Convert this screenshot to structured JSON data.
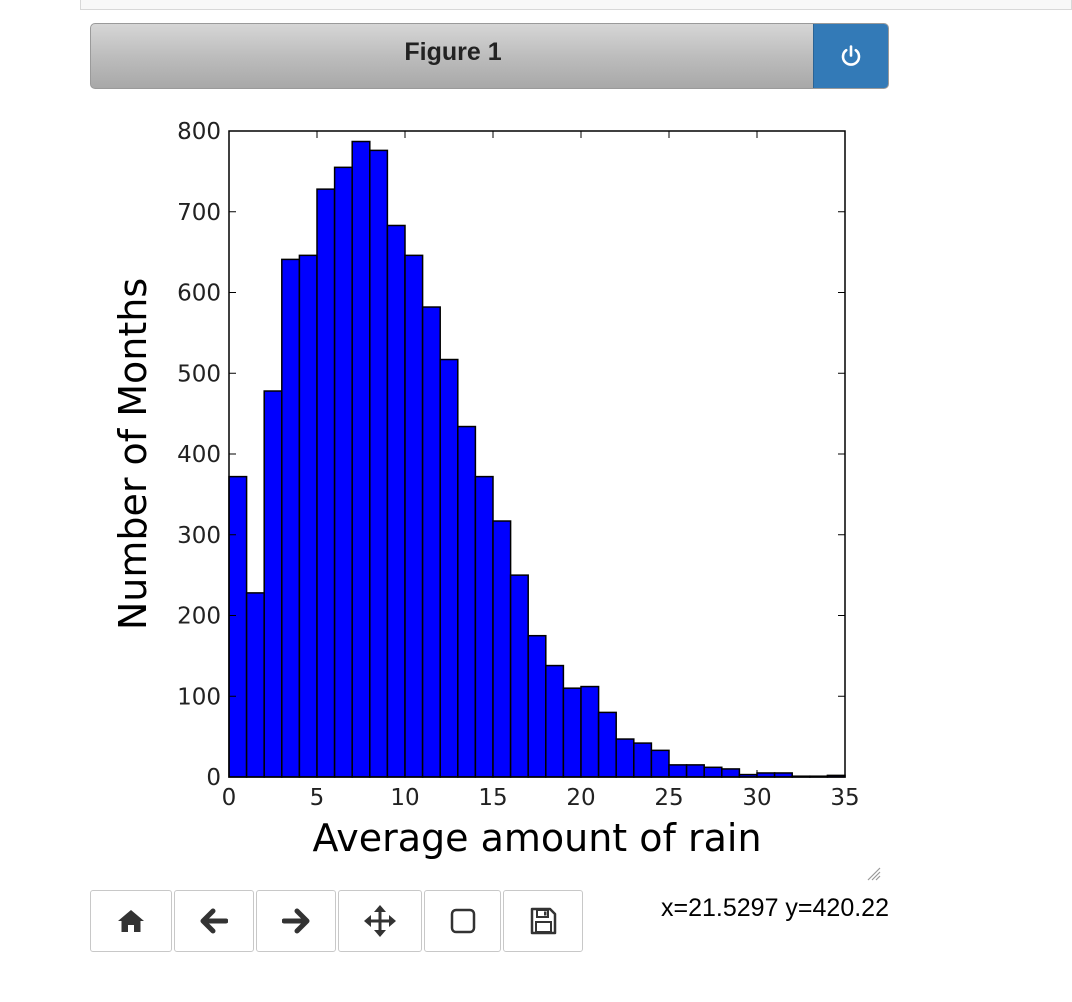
{
  "window": {
    "title": "Figure 1",
    "close_icon": "power-icon",
    "accent_color": "#337ab7"
  },
  "chart_data": {
    "type": "bar",
    "subtype": "histogram",
    "bin_width": 1,
    "bin_starts": [
      0,
      1,
      2,
      3,
      4,
      5,
      6,
      7,
      8,
      9,
      10,
      11,
      12,
      13,
      14,
      15,
      16,
      17,
      18,
      19,
      20,
      21,
      22,
      23,
      24,
      25,
      26,
      27,
      28,
      29,
      30,
      31,
      32,
      33,
      34
    ],
    "values": [
      372,
      228,
      478,
      641,
      646,
      728,
      755,
      787,
      776,
      683,
      646,
      582,
      517,
      434,
      372,
      317,
      250,
      175,
      138,
      110,
      112,
      80,
      47,
      42,
      33,
      15,
      15,
      12,
      10,
      3,
      5,
      5,
      1,
      1,
      2
    ],
    "bar_color": "#0000ff",
    "xlabel": "Average amount of rain",
    "ylabel": "Number of Months",
    "xlim": [
      0,
      35
    ],
    "ylim": [
      0,
      800
    ],
    "xticks": [
      0,
      5,
      10,
      15,
      20,
      25,
      30,
      35
    ],
    "yticks": [
      0,
      100,
      200,
      300,
      400,
      500,
      600,
      700,
      800
    ],
    "grid": false
  },
  "toolbar": {
    "buttons": [
      {
        "name": "home-button",
        "icon": "home-icon"
      },
      {
        "name": "back-button",
        "icon": "arrow-left-icon"
      },
      {
        "name": "forward-button",
        "icon": "arrow-right-icon"
      },
      {
        "name": "pan-button",
        "icon": "move-icon"
      },
      {
        "name": "zoom-button",
        "icon": "square-icon"
      },
      {
        "name": "save-button",
        "icon": "floppy-disk-icon"
      }
    ]
  },
  "status": {
    "coords": "x=21.5297 y=420.22"
  }
}
